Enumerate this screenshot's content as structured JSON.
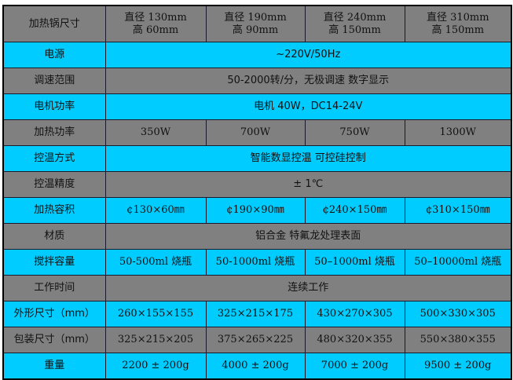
{
  "colors": {
    "gray": "#808080",
    "cyan": "#00ccff"
  },
  "header": {
    "label": "加热锅尺寸",
    "cols": [
      [
        "直径 130mm",
        "高 60mm"
      ],
      [
        "直径 190mm",
        "高 90mm"
      ],
      [
        "直径 240mm",
        "高 150mm"
      ],
      [
        "直径 310mm",
        "高 150mm"
      ]
    ]
  },
  "rows": [
    {
      "label": "电源",
      "span": "~220V/50Hz"
    },
    {
      "label": "调速范围",
      "span": "50-2000转/分，无极调速 数字显示"
    },
    {
      "label": "电机功率",
      "span": "电机 40W，DC14-24V"
    },
    {
      "label": "加热功率",
      "cells": [
        "350W",
        "700W",
        "750W",
        "1300W"
      ]
    },
    {
      "label": "控温方式",
      "span": "智能数显控温 可控硅控制"
    },
    {
      "label": "控温精度",
      "span": "± 1℃"
    },
    {
      "label": "加热容积",
      "cells": [
        "¢130×60㎜",
        "¢190×90㎜",
        "¢240×150㎜",
        "¢310×150㎜"
      ]
    },
    {
      "label": "材质",
      "span": "铝合金 特氟龙处理表面"
    },
    {
      "label": "搅拌容量",
      "cells": [
        "50-500ml 烧瓶",
        "50-1000ml 烧瓶",
        "50–1000ml 烧瓶",
        "50–10000ml 烧瓶"
      ]
    },
    {
      "label": "工作时间",
      "span": "连续工作"
    },
    {
      "label": "外形尺寸（mm）",
      "cells": [
        "260×155×155",
        "325×215×175",
        "430×270×305",
        "500×330×305"
      ]
    },
    {
      "label": "包装尺寸（mm）",
      "cells": [
        "325×215×205",
        "375×265×225",
        "480×320×355",
        "550×380×355"
      ]
    },
    {
      "label": "重量",
      "cells": [
        "2200 ± 200g",
        "4000 ± 200g",
        "7000 ± 200g",
        "9500 ± 200g"
      ]
    }
  ]
}
